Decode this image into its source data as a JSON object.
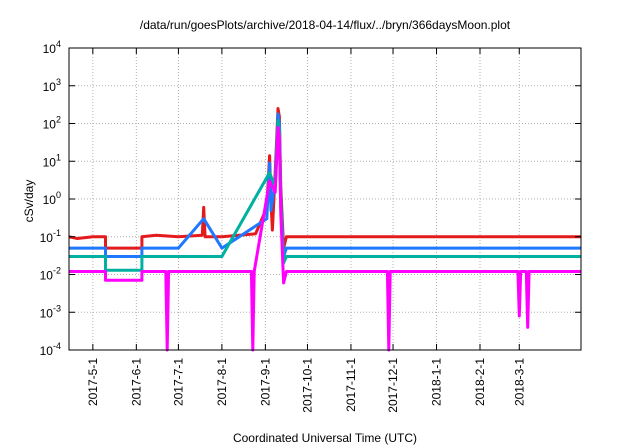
{
  "chart_data": {
    "type": "line",
    "title": "/data/run/goesPlots/archive/2018-04-14/flux/../bryn/366daysMoon.plot",
    "xlabel": "Coordinated Universal Time (UTC)",
    "ylabel": "cSv/day",
    "y_scale": "log",
    "ylim": [
      0.0001,
      10000
    ],
    "xlim": [
      "2017-04-14",
      "2018-04-14"
    ],
    "grid": true,
    "legend": "none",
    "x_ticks": [
      "2017-5-1",
      "2017-6-1",
      "2017-7-1",
      "2017-8-1",
      "2017-9-1",
      "2017-10-1",
      "2017-11-1",
      "2017-12-1",
      "2018-1-1",
      "2018-2-1",
      "2018-3-1"
    ],
    "y_ticks": [
      {
        "value": 0.0001,
        "base": "10",
        "exp": "-4"
      },
      {
        "value": 0.001,
        "base": "10",
        "exp": "-3"
      },
      {
        "value": 0.01,
        "base": "10",
        "exp": "-2"
      },
      {
        "value": 0.1,
        "base": "10",
        "exp": "-1"
      },
      {
        "value": 1,
        "base": "10",
        "exp": "0"
      },
      {
        "value": 10,
        "base": "10",
        "exp": "1"
      },
      {
        "value": 100,
        "base": "10",
        "exp": "2"
      },
      {
        "value": 1000,
        "base": "10",
        "exp": "3"
      },
      {
        "value": 10000,
        "base": "10",
        "exp": "4"
      }
    ],
    "series": [
      {
        "color": "#e41a1c",
        "x": [
          "2017-04-14",
          "2017-04-20",
          "2017-05-01",
          "2017-05-10",
          "2017-05-10",
          "2017-06-05",
          "2017-06-05",
          "2017-06-15",
          "2017-07-01",
          "2017-07-18",
          "2017-07-19",
          "2017-07-20",
          "2017-08-01",
          "2017-08-25",
          "2017-09-02",
          "2017-09-04",
          "2017-09-05",
          "2017-09-06",
          "2017-09-08",
          "2017-09-10",
          "2017-09-11",
          "2017-09-12",
          "2017-09-14",
          "2017-09-16",
          "2017-10-01",
          "2017-11-01",
          "2017-12-01",
          "2018-01-01",
          "2018-02-01",
          "2018-03-01",
          "2018-04-14"
        ],
        "y": [
          0.1,
          0.09,
          0.1,
          0.1,
          0.05,
          0.05,
          0.1,
          0.11,
          0.1,
          0.11,
          0.6,
          0.1,
          0.1,
          0.12,
          0.6,
          14,
          0.8,
          0.15,
          5,
          250,
          150,
          2,
          0.05,
          0.1,
          0.1,
          0.1,
          0.1,
          0.1,
          0.1,
          0.1,
          0.1
        ]
      },
      {
        "color": "#1f78ff",
        "x": [
          "2017-04-14",
          "2017-05-01",
          "2017-05-10",
          "2017-05-10",
          "2017-06-05",
          "2017-06-05",
          "2017-07-01",
          "2017-07-19",
          "2017-08-01",
          "2017-09-02",
          "2017-09-04",
          "2017-09-05",
          "2017-09-08",
          "2017-09-10",
          "2017-09-11",
          "2017-09-12",
          "2017-09-14",
          "2017-09-16",
          "2017-10-01",
          "2017-11-01",
          "2017-12-01",
          "2018-01-01",
          "2018-02-01",
          "2018-03-01",
          "2018-04-14"
        ],
        "y": [
          0.05,
          0.05,
          0.05,
          0.03,
          0.03,
          0.05,
          0.05,
          0.3,
          0.05,
          0.3,
          9,
          0.5,
          3,
          180,
          100,
          1,
          0.03,
          0.05,
          0.05,
          0.05,
          0.05,
          0.05,
          0.05,
          0.05,
          0.05
        ]
      },
      {
        "color": "#00b0a0",
        "x": [
          "2017-04-14",
          "2017-05-01",
          "2017-05-10",
          "2017-05-10",
          "2017-06-05",
          "2017-06-05",
          "2017-07-01",
          "2017-08-01",
          "2017-09-04",
          "2017-09-08",
          "2017-09-10",
          "2017-09-11",
          "2017-09-12",
          "2017-09-14",
          "2017-09-16",
          "2017-10-01",
          "2017-11-01",
          "2017-12-01",
          "2018-01-01",
          "2018-02-01",
          "2018-03-01",
          "2018-04-14"
        ],
        "y": [
          0.03,
          0.03,
          0.03,
          0.013,
          0.013,
          0.03,
          0.03,
          0.03,
          5,
          2,
          120,
          60,
          0.6,
          0.02,
          0.03,
          0.03,
          0.03,
          0.03,
          0.03,
          0.03,
          0.03,
          0.03
        ]
      },
      {
        "color": "#ff00ff",
        "x": [
          "2017-04-14",
          "2017-05-01",
          "2017-05-10",
          "2017-05-10",
          "2017-06-05",
          "2017-06-05",
          "2017-06-22",
          "2017-06-23",
          "2017-06-24",
          "2017-07-15",
          "2017-08-01",
          "2017-08-22",
          "2017-08-23",
          "2017-08-24",
          "2017-09-04",
          "2017-09-08",
          "2017-09-10",
          "2017-09-11",
          "2017-09-12",
          "2017-09-14",
          "2017-09-16",
          "2017-10-01",
          "2017-11-01",
          "2017-11-27",
          "2017-11-28",
          "2017-11-29",
          "2017-12-15",
          "2018-01-01",
          "2018-02-01",
          "2018-02-28",
          "2018-03-01",
          "2018-03-02",
          "2018-03-06",
          "2018-03-07",
          "2018-03-08",
          "2018-04-14"
        ],
        "y": [
          0.012,
          0.012,
          0.012,
          0.007,
          0.007,
          0.012,
          0.012,
          0.0001,
          0.012,
          0.012,
          0.012,
          0.012,
          0.0001,
          0.012,
          3,
          1.5,
          80,
          40,
          0.4,
          0.006,
          0.012,
          0.012,
          0.012,
          0.012,
          0.0001,
          0.012,
          0.012,
          0.012,
          0.012,
          0.012,
          0.0008,
          0.012,
          0.012,
          0.0004,
          0.012,
          0.012
        ]
      }
    ]
  }
}
